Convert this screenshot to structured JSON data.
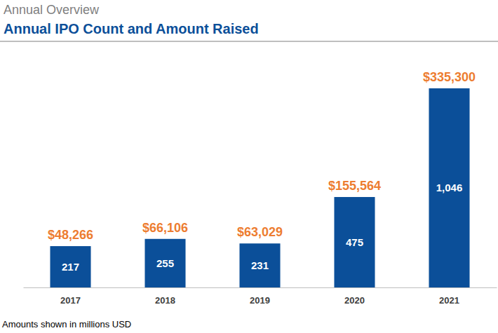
{
  "chart_data": {
    "type": "bar",
    "header": "Annual Overview",
    "title": "Annual IPO Count and Amount Raised",
    "note": "Amounts shown in millions USD",
    "categories": [
      "2017",
      "2018",
      "2019",
      "2020",
      "2021"
    ],
    "values": [
      217,
      255,
      231,
      475,
      1046
    ],
    "value_labels": [
      "217",
      "255",
      "231",
      "475",
      "1,046"
    ],
    "amounts": [
      48266,
      66106,
      63029,
      155564,
      335300
    ],
    "amount_labels": [
      "$48,266",
      "$66,106",
      "$63,029",
      "$155,564",
      "$335,300"
    ],
    "color": "#0b4f99",
    "ylim": [
      0,
      1046
    ],
    "data_labels": true,
    "tick_labels": "x",
    "grid": false
  }
}
